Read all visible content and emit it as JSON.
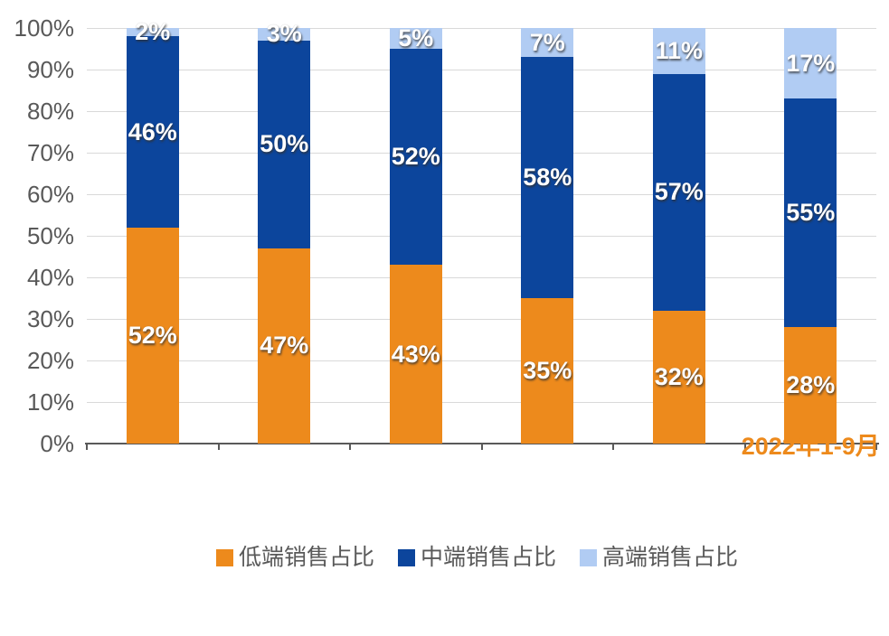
{
  "chart_data": {
    "type": "bar",
    "subtype": "stacked-100-column",
    "title": "",
    "categories": [
      "",
      "",
      "",
      "",
      "",
      "2022年1-9月"
    ],
    "series": [
      {
        "name": "低端销售占比",
        "color": "#ED8A1C",
        "values": [
          52,
          47,
          43,
          35,
          32,
          28
        ]
      },
      {
        "name": "中端销售占比",
        "color": "#0C459C",
        "values": [
          46,
          50,
          52,
          58,
          57,
          55
        ]
      },
      {
        "name": "高端销售占比",
        "color": "#B1CCF3",
        "values": [
          2,
          3,
          5,
          7,
          11,
          17
        ]
      }
    ],
    "y_ticks": [
      "0%",
      "10%",
      "20%",
      "30%",
      "40%",
      "50%",
      "60%",
      "70%",
      "80%",
      "90%",
      "100%"
    ],
    "ylim": [
      0,
      100
    ],
    "grid": "horizontal",
    "legend_position": "bottom",
    "data_labels": "percent-inside-white",
    "colors": {
      "axis_text": "#595959",
      "gridline": "#D9D9D9",
      "axis_line": "#595959",
      "category_label_text": "#ED8A1C",
      "data_label_text": "#FFFFFF",
      "background": "#FFFFFF"
    }
  }
}
